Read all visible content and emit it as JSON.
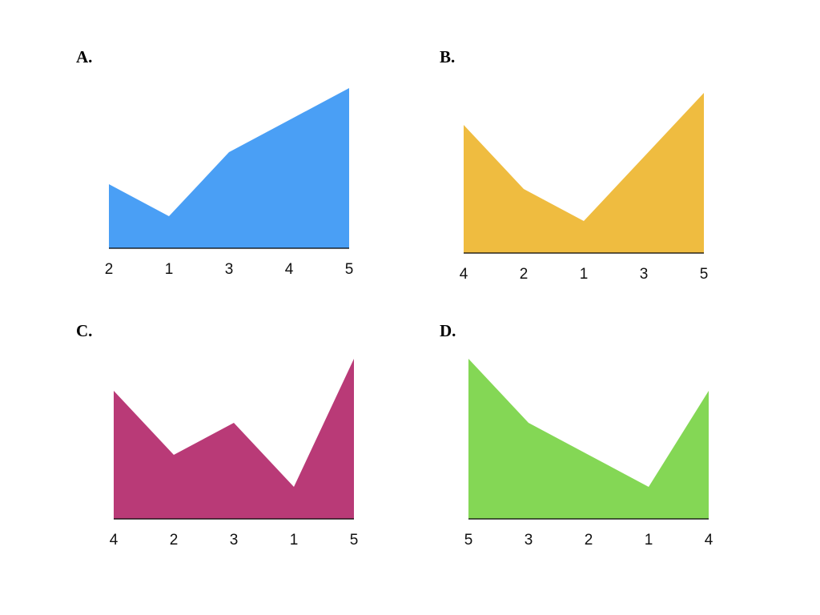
{
  "chart_data": [
    {
      "type": "area",
      "panel_label": "A.",
      "color": "#4A9FF5",
      "categories": [
        "2",
        "1",
        "3",
        "4",
        "5"
      ],
      "values": [
        2,
        1,
        3,
        4,
        5
      ],
      "ylim": [
        0,
        5
      ]
    },
    {
      "type": "area",
      "panel_label": "B.",
      "color": "#EFBC40",
      "categories": [
        "4",
        "2",
        "1",
        "3",
        "5"
      ],
      "values": [
        4,
        2,
        1,
        3,
        5
      ],
      "ylim": [
        0,
        5
      ]
    },
    {
      "type": "area",
      "panel_label": "C.",
      "color": "#B93A77",
      "categories": [
        "4",
        "2",
        "3",
        "1",
        "5"
      ],
      "values": [
        4,
        2,
        3,
        1,
        5
      ],
      "ylim": [
        0,
        5
      ]
    },
    {
      "type": "area",
      "panel_label": "D.",
      "color": "#84D755",
      "categories": [
        "5",
        "3",
        "2",
        "1",
        "4"
      ],
      "values": [
        5,
        3,
        2,
        1,
        4
      ],
      "ylim": [
        0,
        5
      ]
    }
  ]
}
